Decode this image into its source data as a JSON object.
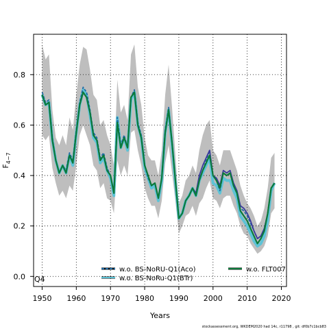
{
  "chart_data": {
    "type": "line",
    "title": "",
    "xlabel": "Years",
    "ylabel": "F",
    "ylabel_sub": "4−7",
    "xlim": [
      1947.5,
      2021.5
    ],
    "ylim": [
      -0.04,
      0.96
    ],
    "x_ticks": [
      1950,
      1960,
      1970,
      1980,
      1990,
      2000,
      2010,
      2020
    ],
    "y_ticks": [
      0.0,
      0.2,
      0.4,
      0.6,
      0.8
    ],
    "y_tick_labels": [
      "0.0",
      "0.2",
      "0.4",
      "0.6",
      "0.8"
    ],
    "grid": true,
    "panel_label": "Q4",
    "x": [
      1950,
      1951,
      1952,
      1953,
      1954,
      1955,
      1956,
      1957,
      1958,
      1959,
      1960,
      1961,
      1962,
      1963,
      1964,
      1965,
      1966,
      1967,
      1968,
      1969,
      1970,
      1971,
      1972,
      1973,
      1974,
      1975,
      1976,
      1977,
      1978,
      1979,
      1980,
      1981,
      1982,
      1983,
      1984,
      1985,
      1986,
      1987,
      1988,
      1989,
      1990,
      1991,
      1992,
      1993,
      1994,
      1995,
      1996,
      1997,
      1998,
      1999,
      2000,
      2001,
      2002,
      2003,
      2004,
      2005,
      2006,
      2007,
      2008,
      2009,
      2010,
      2011,
      2012,
      2013,
      2014,
      2015,
      2016,
      2017,
      2018
    ],
    "band_upper": [
      0.92,
      0.86,
      0.88,
      0.66,
      0.55,
      0.52,
      0.56,
      0.52,
      0.63,
      0.58,
      0.72,
      0.84,
      0.91,
      0.9,
      0.82,
      0.72,
      0.7,
      0.6,
      0.62,
      0.56,
      0.52,
      0.44,
      0.78,
      0.65,
      0.68,
      0.62,
      0.88,
      0.92,
      0.75,
      0.68,
      0.55,
      0.48,
      0.46,
      0.46,
      0.4,
      0.5,
      0.72,
      0.84,
      0.67,
      0.48,
      0.29,
      0.32,
      0.38,
      0.4,
      0.44,
      0.41,
      0.5,
      0.56,
      0.6,
      0.62,
      0.5,
      0.48,
      0.44,
      0.5,
      0.5,
      0.5,
      0.46,
      0.42,
      0.36,
      0.32,
      0.29,
      0.27,
      0.24,
      0.2,
      0.22,
      0.27,
      0.35,
      0.47,
      0.49
    ],
    "band_lower": [
      0.56,
      0.54,
      0.56,
      0.43,
      0.37,
      0.32,
      0.34,
      0.31,
      0.36,
      0.34,
      0.44,
      0.56,
      0.6,
      0.56,
      0.52,
      0.44,
      0.42,
      0.35,
      0.37,
      0.31,
      0.3,
      0.25,
      0.46,
      0.4,
      0.44,
      0.4,
      0.57,
      0.58,
      0.5,
      0.44,
      0.35,
      0.31,
      0.28,
      0.28,
      0.23,
      0.3,
      0.45,
      0.52,
      0.41,
      0.3,
      0.17,
      0.2,
      0.24,
      0.25,
      0.28,
      0.24,
      0.29,
      0.31,
      0.35,
      0.38,
      0.31,
      0.3,
      0.27,
      0.31,
      0.32,
      0.32,
      0.28,
      0.25,
      0.2,
      0.17,
      0.16,
      0.13,
      0.11,
      0.09,
      0.1,
      0.12,
      0.16,
      0.25,
      0.27
    ],
    "series": [
      {
        "name": "w.o. BS-NoRU-Q1(Aco)",
        "color": "#1f6ba5",
        "dash": "dashed",
        "values": [
          0.73,
          0.69,
          0.7,
          0.55,
          0.46,
          0.41,
          0.44,
          0.42,
          0.49,
          0.46,
          0.58,
          0.69,
          0.75,
          0.73,
          0.66,
          0.57,
          0.55,
          0.47,
          0.49,
          0.43,
          0.4,
          0.33,
          0.63,
          0.52,
          0.56,
          0.51,
          0.71,
          0.74,
          0.61,
          0.56,
          0.44,
          0.39,
          0.36,
          0.37,
          0.31,
          0.39,
          0.58,
          0.67,
          0.53,
          0.38,
          0.23,
          0.25,
          0.3,
          0.32,
          0.35,
          0.32,
          0.39,
          0.42,
          0.46,
          0.5,
          0.4,
          0.38,
          0.34,
          0.41,
          0.4,
          0.41,
          0.36,
          0.33,
          0.27,
          0.26,
          0.24,
          0.21,
          0.18,
          0.15,
          0.16,
          0.19,
          0.25,
          0.35,
          0.37
        ]
      },
      {
        "name": "w.o. BS-NoRu-Q1(BTr)",
        "color": "#5ec3d6",
        "dash": "solid",
        "values": [
          0.72,
          0.68,
          0.69,
          0.54,
          0.46,
          0.41,
          0.44,
          0.41,
          0.48,
          0.44,
          0.57,
          0.68,
          0.74,
          0.72,
          0.64,
          0.55,
          0.53,
          0.45,
          0.47,
          0.42,
          0.39,
          0.32,
          0.63,
          0.51,
          0.55,
          0.5,
          0.7,
          0.73,
          0.6,
          0.55,
          0.43,
          0.39,
          0.35,
          0.36,
          0.3,
          0.38,
          0.57,
          0.66,
          0.52,
          0.37,
          0.23,
          0.25,
          0.3,
          0.32,
          0.35,
          0.32,
          0.38,
          0.41,
          0.44,
          0.47,
          0.37,
          0.36,
          0.33,
          0.39,
          0.38,
          0.38,
          0.34,
          0.31,
          0.24,
          0.22,
          0.2,
          0.17,
          0.14,
          0.12,
          0.13,
          0.16,
          0.22,
          0.34,
          0.37
        ]
      },
      {
        "name": "w.o. FLT007",
        "color": "#0b7a3a",
        "dash": "solid",
        "values": [
          0.72,
          0.68,
          0.69,
          0.54,
          0.46,
          0.41,
          0.44,
          0.41,
          0.48,
          0.45,
          0.57,
          0.68,
          0.73,
          0.71,
          0.65,
          0.56,
          0.54,
          0.46,
          0.48,
          0.42,
          0.4,
          0.33,
          0.61,
          0.51,
          0.55,
          0.51,
          0.71,
          0.73,
          0.6,
          0.55,
          0.44,
          0.4,
          0.36,
          0.37,
          0.31,
          0.39,
          0.57,
          0.66,
          0.53,
          0.38,
          0.23,
          0.25,
          0.3,
          0.32,
          0.35,
          0.32,
          0.38,
          0.42,
          0.45,
          0.48,
          0.4,
          0.38,
          0.35,
          0.41,
          0.4,
          0.41,
          0.36,
          0.33,
          0.26,
          0.24,
          0.22,
          0.19,
          0.16,
          0.13,
          0.15,
          0.18,
          0.25,
          0.35,
          0.37
        ]
      },
      {
        "name": "",
        "color": "#3a3a9a",
        "dash": "solid",
        "values": [
          0.72,
          0.68,
          0.69,
          0.54,
          0.46,
          0.41,
          0.44,
          0.41,
          0.48,
          0.45,
          0.57,
          0.68,
          0.73,
          0.71,
          0.65,
          0.56,
          0.54,
          0.46,
          0.48,
          0.42,
          0.4,
          0.33,
          0.61,
          0.51,
          0.55,
          0.51,
          0.71,
          0.73,
          0.6,
          0.55,
          0.44,
          0.4,
          0.36,
          0.37,
          0.31,
          0.39,
          0.57,
          0.66,
          0.53,
          0.38,
          0.23,
          0.25,
          0.3,
          0.32,
          0.35,
          0.33,
          0.4,
          0.44,
          0.47,
          0.5,
          0.4,
          0.39,
          0.36,
          0.42,
          0.41,
          0.42,
          0.37,
          0.34,
          0.28,
          0.27,
          0.25,
          0.22,
          0.18,
          0.15,
          0.16,
          0.19,
          0.25,
          0.35,
          0.37
        ]
      }
    ],
    "band_color": "#bebebe",
    "legend_placement": "bottom"
  },
  "footer_text": "stockassessment.org, WKDEM2020 had 14c, r11798 , git: df0b7c1bcb83"
}
